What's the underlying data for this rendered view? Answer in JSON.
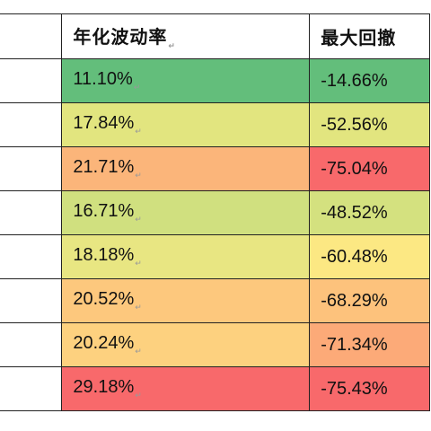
{
  "table": {
    "headers": [
      "",
      "年化波动率",
      "最大回撤"
    ],
    "rows": [
      {
        "vol": "11.10%",
        "dd": "-14.66%",
        "vol_color": "#63be7b",
        "dd_color": "#63be7b"
      },
      {
        "vol": "17.84%",
        "dd": "-52.56%",
        "vol_color": "#e2e57f",
        "dd_color": "#e2e57f"
      },
      {
        "vol": "21.71%",
        "dd": "-75.04%",
        "vol_color": "#fbb57a",
        "dd_color": "#f8696b"
      },
      {
        "vol": "16.71%",
        "dd": "-48.52%",
        "vol_color": "#d0e07f",
        "dd_color": "#d4e17f"
      },
      {
        "vol": "18.18%",
        "dd": "-60.48%",
        "vol_color": "#e8e682",
        "dd_color": "#fce883"
      },
      {
        "vol": "20.52%",
        "dd": "-68.29%",
        "vol_color": "#fdc87d",
        "dd_color": "#fdc27c"
      },
      {
        "vol": "20.24%",
        "dd": "-71.34%",
        "vol_color": "#fdd17f",
        "dd_color": "#fcaa78"
      },
      {
        "vol": "29.18%",
        "dd": "-75.43%",
        "vol_color": "#f8696b",
        "dd_color": "#f8696b"
      }
    ]
  }
}
